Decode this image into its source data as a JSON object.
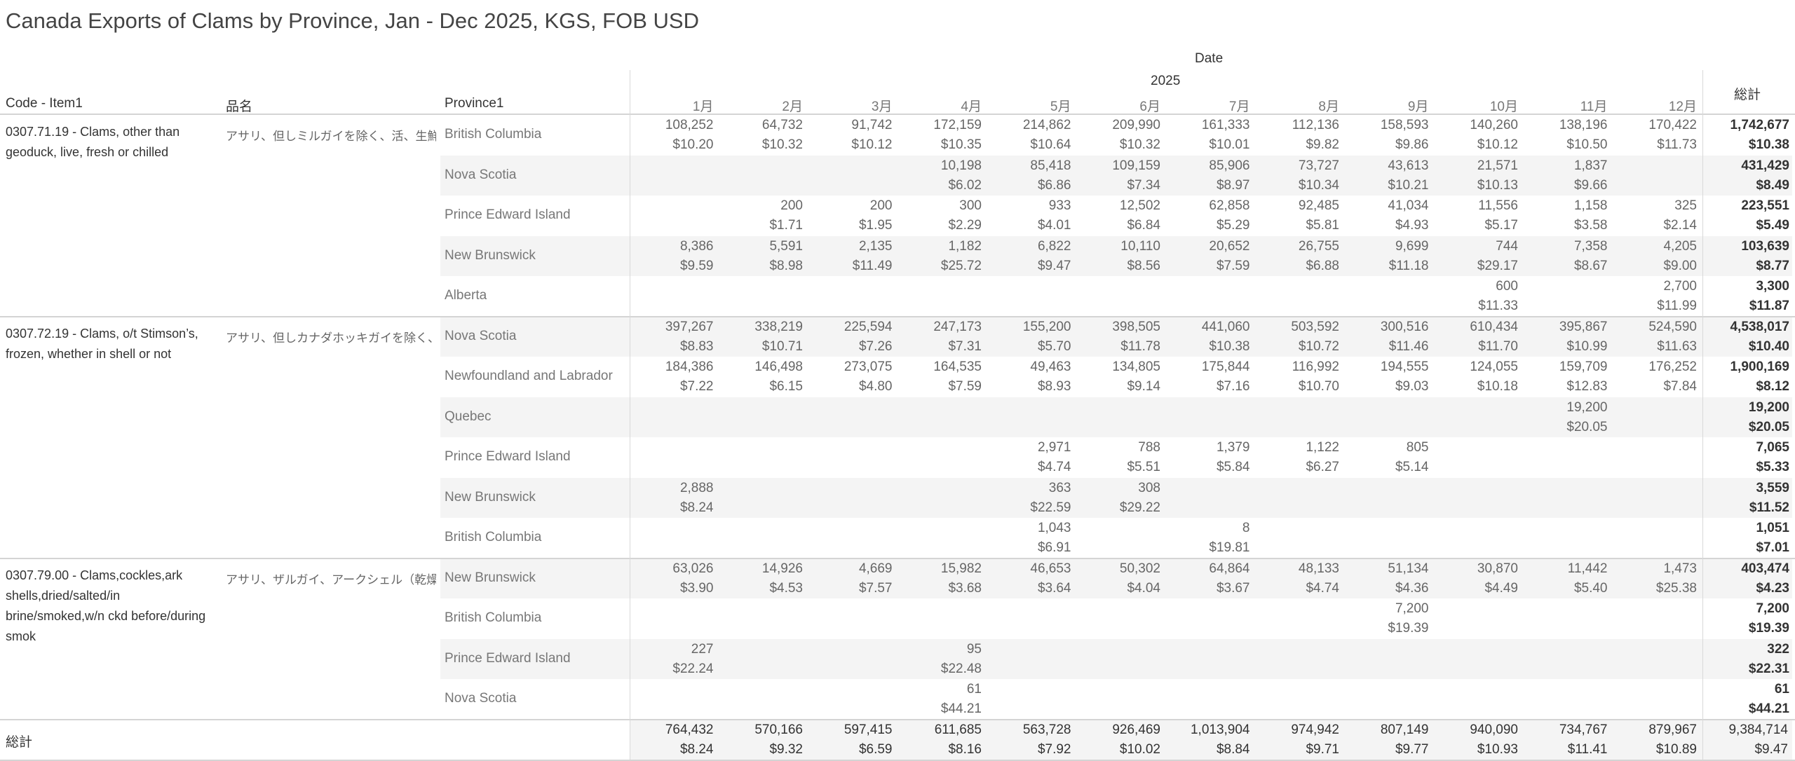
{
  "title": "Canada Exports of Clams by Province, Jan - Dec 2025, KGS, FOB USD",
  "header": {
    "date_label": "Date",
    "year": "2025",
    "col_code": "Code - Item1",
    "col_name": "品名",
    "col_province": "Province1",
    "total_label": "総計",
    "months": [
      "1月",
      "2月",
      "3月",
      "4月",
      "5月",
      "6月",
      "7月",
      "8月",
      "9月",
      "10月",
      "11月",
      "12月"
    ]
  },
  "colors": {
    "band": "#f4f4f4",
    "line": "#d4d4d4",
    "text": "#666666",
    "bold_text": "#333333"
  },
  "chart_data": {
    "type": "table",
    "title": "Canada Exports of Clams by Province, Jan - Dec 2025, KGS, FOB USD",
    "groups": [
      {
        "code": "0307.71.19 - Clams, other than geoduck, live, fresh or chilled",
        "name_jp": "アサリ、但しミルガイを除く、活、生鮮ま..",
        "rows": [
          {
            "province": "British Columbia",
            "qty": [
              "108,252",
              "64,732",
              "91,742",
              "172,159",
              "214,862",
              "209,990",
              "161,333",
              "112,136",
              "158,593",
              "140,260",
              "138,196",
              "170,422"
            ],
            "price": [
              "$10.20",
              "$10.32",
              "$10.12",
              "$10.35",
              "$10.64",
              "$10.32",
              "$10.01",
              "$9.82",
              "$9.86",
              "$10.12",
              "$10.50",
              "$11.73"
            ],
            "total_qty": "1,742,677",
            "total_price": "$10.38"
          },
          {
            "province": "Nova Scotia",
            "qty": [
              "",
              "",
              "",
              "10,198",
              "85,418",
              "109,159",
              "85,906",
              "73,727",
              "43,613",
              "21,571",
              "1,837",
              ""
            ],
            "price": [
              "",
              "",
              "",
              "$6.02",
              "$6.86",
              "$7.34",
              "$8.97",
              "$10.34",
              "$10.21",
              "$10.13",
              "$9.66",
              ""
            ],
            "total_qty": "431,429",
            "total_price": "$8.49"
          },
          {
            "province": "Prince Edward Island",
            "qty": [
              "",
              "200",
              "200",
              "300",
              "933",
              "12,502",
              "62,858",
              "92,485",
              "41,034",
              "11,556",
              "1,158",
              "325"
            ],
            "price": [
              "",
              "$1.71",
              "$1.95",
              "$2.29",
              "$4.01",
              "$6.84",
              "$5.29",
              "$5.81",
              "$4.93",
              "$5.17",
              "$3.58",
              "$2.14"
            ],
            "total_qty": "223,551",
            "total_price": "$5.49"
          },
          {
            "province": "New Brunswick",
            "qty": [
              "8,386",
              "5,591",
              "2,135",
              "1,182",
              "6,822",
              "10,110",
              "20,652",
              "26,755",
              "9,699",
              "744",
              "7,358",
              "4,205"
            ],
            "price": [
              "$9.59",
              "$8.98",
              "$11.49",
              "$25.72",
              "$9.47",
              "$8.56",
              "$7.59",
              "$6.88",
              "$11.18",
              "$29.17",
              "$8.67",
              "$9.00"
            ],
            "total_qty": "103,639",
            "total_price": "$8.77"
          },
          {
            "province": "Alberta",
            "qty": [
              "",
              "",
              "",
              "",
              "",
              "",
              "",
              "",
              "",
              "600",
              "",
              "2,700"
            ],
            "price": [
              "",
              "",
              "",
              "",
              "",
              "",
              "",
              "",
              "",
              "$11.33",
              "",
              "$11.99"
            ],
            "total_qty": "3,300",
            "total_price": "$11.87"
          }
        ]
      },
      {
        "code": "0307.72.19 - Clams, o/t Stimson’s, frozen, whether in shell or not",
        "name_jp": "アサリ、但しカナダホッキガイを除く、冷..",
        "rows": [
          {
            "province": "Nova Scotia",
            "qty": [
              "397,267",
              "338,219",
              "225,594",
              "247,173",
              "155,200",
              "398,505",
              "441,060",
              "503,592",
              "300,516",
              "610,434",
              "395,867",
              "524,590"
            ],
            "price": [
              "$8.83",
              "$10.71",
              "$7.26",
              "$7.31",
              "$5.70",
              "$11.78",
              "$10.38",
              "$10.72",
              "$11.46",
              "$11.70",
              "$10.99",
              "$11.63"
            ],
            "total_qty": "4,538,017",
            "total_price": "$10.40"
          },
          {
            "province": "Newfoundland and Labrador",
            "qty": [
              "184,386",
              "146,498",
              "273,075",
              "164,535",
              "49,463",
              "134,805",
              "175,844",
              "116,992",
              "194,555",
              "124,055",
              "159,709",
              "176,252"
            ],
            "price": [
              "$7.22",
              "$6.15",
              "$4.80",
              "$7.59",
              "$8.93",
              "$9.14",
              "$7.16",
              "$10.70",
              "$9.03",
              "$10.18",
              "$12.83",
              "$7.84"
            ],
            "total_qty": "1,900,169",
            "total_price": "$8.12"
          },
          {
            "province": "Quebec",
            "qty": [
              "",
              "",
              "",
              "",
              "",
              "",
              "",
              "",
              "",
              "",
              "19,200",
              ""
            ],
            "price": [
              "",
              "",
              "",
              "",
              "",
              "",
              "",
              "",
              "",
              "",
              "$20.05",
              ""
            ],
            "total_qty": "19,200",
            "total_price": "$20.05"
          },
          {
            "province": "Prince Edward Island",
            "qty": [
              "",
              "",
              "",
              "",
              "2,971",
              "788",
              "1,379",
              "1,122",
              "805",
              "",
              "",
              ""
            ],
            "price": [
              "",
              "",
              "",
              "",
              "$4.74",
              "$5.51",
              "$5.84",
              "$6.27",
              "$5.14",
              "",
              "",
              ""
            ],
            "total_qty": "7,065",
            "total_price": "$5.33"
          },
          {
            "province": "New Brunswick",
            "qty": [
              "2,888",
              "",
              "",
              "",
              "363",
              "308",
              "",
              "",
              "",
              "",
              "",
              ""
            ],
            "price": [
              "$8.24",
              "",
              "",
              "",
              "$22.59",
              "$29.22",
              "",
              "",
              "",
              "",
              "",
              ""
            ],
            "total_qty": "3,559",
            "total_price": "$11.52"
          },
          {
            "province": "British Columbia",
            "qty": [
              "",
              "",
              "",
              "",
              "1,043",
              "",
              "8",
              "",
              "",
              "",
              "",
              ""
            ],
            "price": [
              "",
              "",
              "",
              "",
              "$6.91",
              "",
              "$19.81",
              "",
              "",
              "",
              "",
              ""
            ],
            "total_qty": "1,051",
            "total_price": "$7.01"
          }
        ]
      },
      {
        "code": "0307.79.00 - Clams,cockles,ark shells,dried/salted/in brine/smoked,w/n ckd before/during smok",
        "name_jp": "アサリ、ザルガイ、アークシェル（乾燥／..",
        "rows": [
          {
            "province": "New Brunswick",
            "qty": [
              "63,026",
              "14,926",
              "4,669",
              "15,982",
              "46,653",
              "50,302",
              "64,864",
              "48,133",
              "51,134",
              "30,870",
              "11,442",
              "1,473"
            ],
            "price": [
              "$3.90",
              "$4.53",
              "$7.57",
              "$3.68",
              "$3.64",
              "$4.04",
              "$3.67",
              "$4.74",
              "$4.36",
              "$4.49",
              "$5.40",
              "$25.38"
            ],
            "total_qty": "403,474",
            "total_price": "$4.23"
          },
          {
            "province": "British Columbia",
            "qty": [
              "",
              "",
              "",
              "",
              "",
              "",
              "",
              "",
              "7,200",
              "",
              "",
              ""
            ],
            "price": [
              "",
              "",
              "",
              "",
              "",
              "",
              "",
              "",
              "$19.39",
              "",
              "",
              ""
            ],
            "total_qty": "7,200",
            "total_price": "$19.39"
          },
          {
            "province": "Prince Edward Island",
            "qty": [
              "227",
              "",
              "",
              "95",
              "",
              "",
              "",
              "",
              "",
              "",
              "",
              ""
            ],
            "price": [
              "$22.24",
              "",
              "",
              "$22.48",
              "",
              "",
              "",
              "",
              "",
              "",
              "",
              ""
            ],
            "total_qty": "322",
            "total_price": "$22.31"
          },
          {
            "province": "Nova Scotia",
            "qty": [
              "",
              "",
              "",
              "61",
              "",
              "",
              "",
              "",
              "",
              "",
              "",
              ""
            ],
            "price": [
              "",
              "",
              "",
              "$44.21",
              "",
              "",
              "",
              "",
              "",
              "",
              "",
              ""
            ],
            "total_qty": "61",
            "total_price": "$44.21"
          }
        ]
      }
    ],
    "grand_total": {
      "label": "総計",
      "qty": [
        "764,432",
        "570,166",
        "597,415",
        "611,685",
        "563,728",
        "926,469",
        "1,013,904",
        "974,942",
        "807,149",
        "940,090",
        "734,767",
        "879,967"
      ],
      "price": [
        "$8.24",
        "$9.32",
        "$6.59",
        "$8.16",
        "$7.92",
        "$10.02",
        "$8.84",
        "$9.71",
        "$9.77",
        "$10.93",
        "$11.41",
        "$10.89"
      ],
      "total_qty": "9,384,714",
      "total_price": "$9.47"
    }
  }
}
